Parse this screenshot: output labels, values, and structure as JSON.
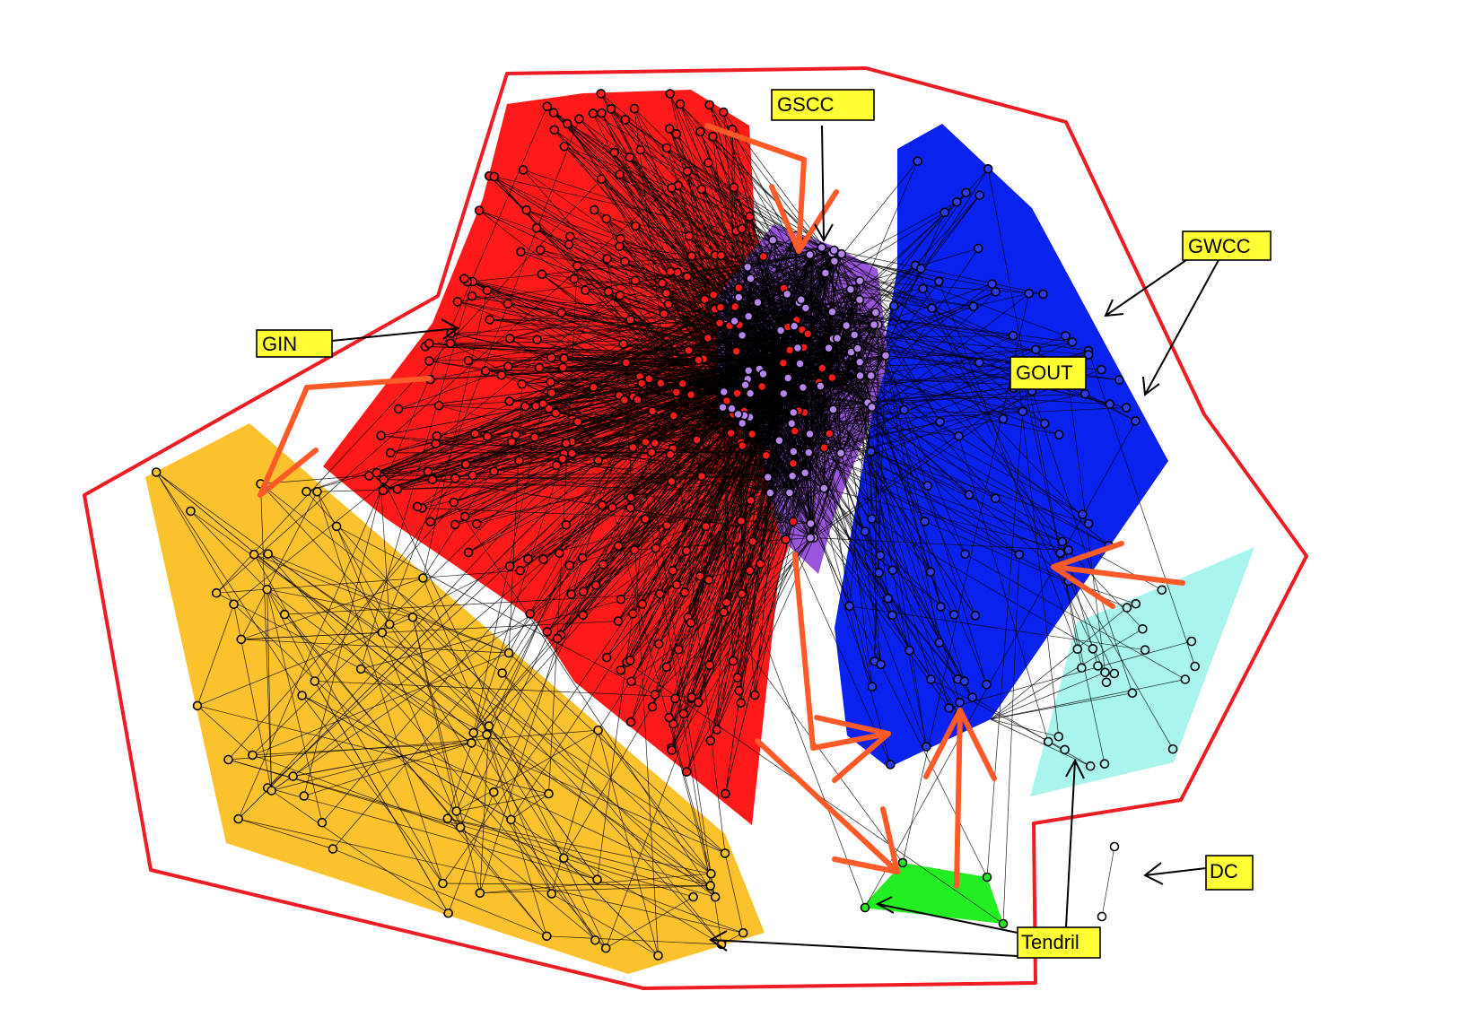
{
  "labels": {
    "gscc": "GSCC",
    "gwcc": "GWCC",
    "gin": "GIN",
    "gout": "GOUT",
    "dc": "DC",
    "tendril": "Tendril"
  },
  "colors": {
    "gin": "#ff1a1a",
    "gscc": "#9955dd",
    "gout": "#0a22ee",
    "tendril": "#22ee22",
    "dc_region": "#aaf4ee",
    "orange_region": "#fcc22e",
    "gwcc_outline": "#ee1c24",
    "arrows": "#ff5a28",
    "label_fill": "#ffff33"
  },
  "icons": [
    "orange-flow-arrow",
    "black-pointer-arrow"
  ]
}
